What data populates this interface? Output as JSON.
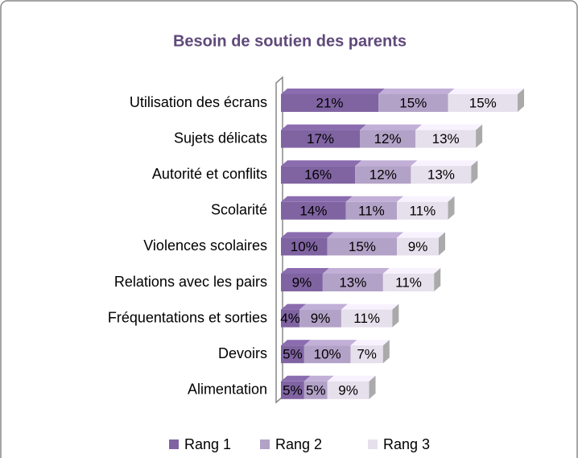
{
  "chart_data": {
    "type": "bar",
    "stacked": true,
    "orientation": "horizontal",
    "title": "Besoin de soutien des parents",
    "categories": [
      "Utilisation des écrans",
      "Sujets délicats",
      "Autorité et conflits",
      "Scolarité",
      "Violences scolaires",
      "Relations avec les pairs",
      "Fréquentations et sorties",
      "Devoirs",
      "Alimentation"
    ],
    "series": [
      {
        "name": "Rang 1",
        "color": "#8064a2",
        "values": [
          21,
          17,
          16,
          14,
          10,
          9,
          4,
          5,
          5
        ],
        "value_labels": [
          "21%",
          "17%",
          "16%",
          "14%",
          "10%",
          "9%",
          "4%",
          "5%",
          "5%"
        ]
      },
      {
        "name": "Rang 2",
        "color": "#b3a2c7",
        "values": [
          15,
          12,
          12,
          11,
          15,
          13,
          9,
          10,
          5
        ],
        "value_labels": [
          "15%",
          "12%",
          "12%",
          "11%",
          "15%",
          "13%",
          "9%",
          "10%",
          "5%"
        ]
      },
      {
        "name": "Rang 3",
        "color": "#e6e0ec",
        "values": [
          15,
          13,
          13,
          11,
          9,
          11,
          11,
          7,
          9
        ],
        "value_labels": [
          "15%",
          "13%",
          "13%",
          "11%",
          "9%",
          "11%",
          "11%",
          "7%",
          "9%"
        ]
      }
    ],
    "legend": "bottom"
  }
}
